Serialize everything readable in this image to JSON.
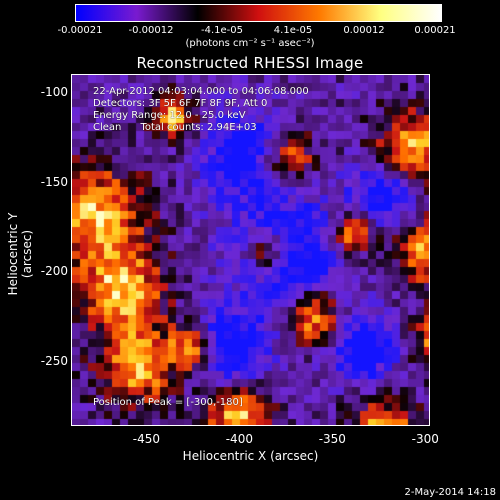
{
  "colorbar": {
    "ticks": [
      "-0.00021",
      "-0.00012",
      "-4.1e-05",
      "4.1e-05",
      "0.00012",
      "0.00021"
    ],
    "units": "(photons cm⁻² s⁻¹ asec⁻²)",
    "colors": [
      "#0000ff",
      "#7a1bd0",
      "#000000",
      "#d01010",
      "#ff7a00",
      "#ffff80",
      "#ffffff"
    ]
  },
  "chart_data": {
    "type": "heatmap",
    "title": "Reconstructed RHESSI Image",
    "xlabel": "Heliocentric X (arcsec)",
    "ylabel": "Heliocentric Y (arcsec)",
    "xlim": [
      -490,
      -298
    ],
    "ylim": [
      -285,
      -90
    ],
    "xticks": [
      "-450",
      "-400",
      "-350",
      "-300"
    ],
    "yticks": [
      "-100",
      "-150",
      "-200",
      "-250"
    ],
    "xtick_values": [
      -450,
      -400,
      -350,
      -300
    ],
    "ytick_values": [
      -100,
      -150,
      -200,
      -250
    ],
    "annotations": {
      "time": "22-Apr-2012 04:03:04.000 to 04:06:08.000",
      "detectors": "Detectors: 3F 5F 6F 7F 8F 9F, Att 0",
      "energy": "Energy Range: 12.0 - 25.0 keV",
      "method": "Clean      Total counts: 2.94E+03",
      "peak": "Position of Peak = [-300,-180]"
    }
  },
  "timestamp": "2-May-2014 14:18"
}
